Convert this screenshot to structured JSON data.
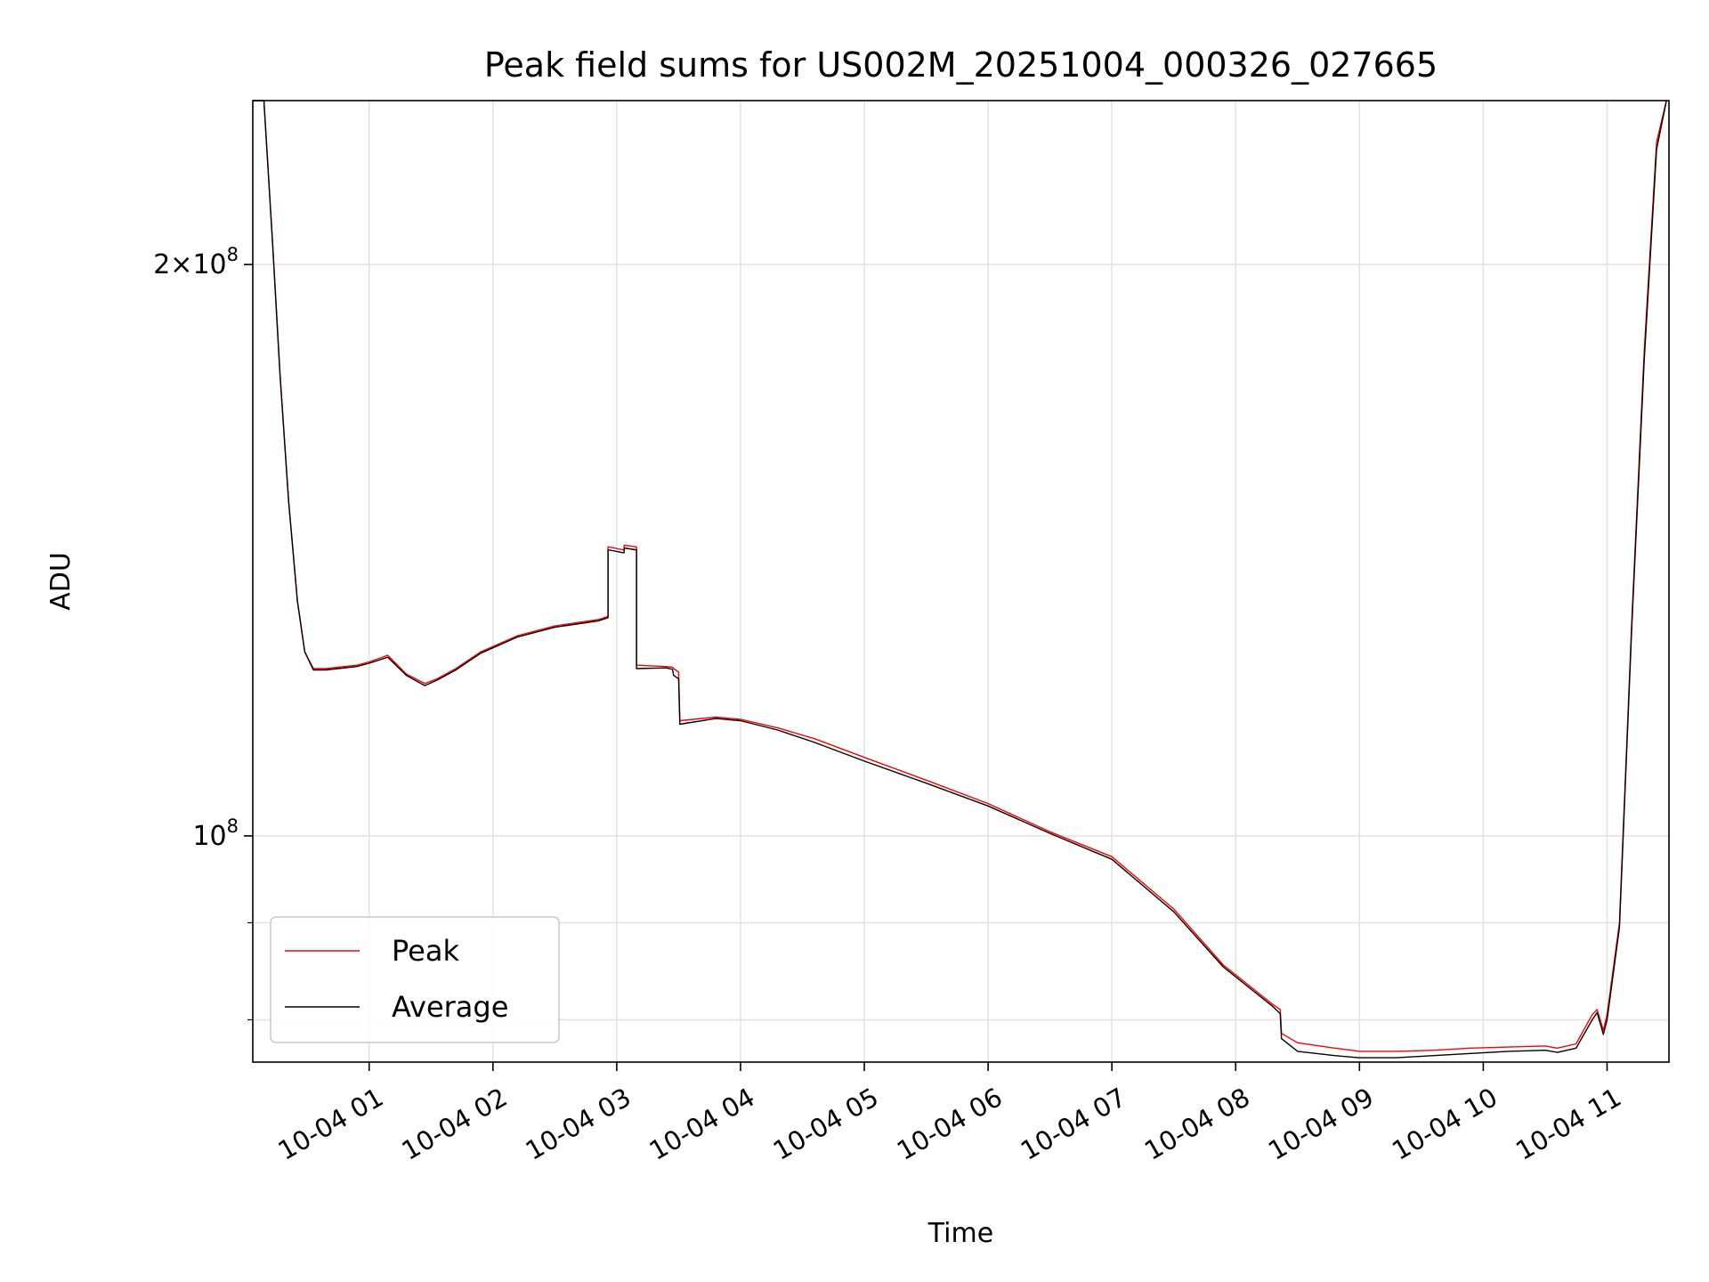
{
  "chart_data": {
    "type": "line",
    "title": "Peak field sums for US002M_20251004_000326_027665",
    "xlabel": "Time",
    "ylabel": "ADU",
    "yscale": "log",
    "grid": true,
    "legend_position": "lower-left",
    "x_unit": "hours since 2025-10-04 00:00",
    "xlim": [
      0.06,
      11.5
    ],
    "ylim": [
      76000000,
      244000000
    ],
    "x_ticks": [
      1,
      2,
      3,
      4,
      5,
      6,
      7,
      8,
      9,
      10,
      11
    ],
    "x_tick_labels": [
      "10-04 01",
      "10-04 02",
      "10-04 03",
      "10-04 04",
      "10-04 05",
      "10-04 06",
      "10-04 07",
      "10-04 08",
      "10-04 09",
      "10-04 10",
      "10-04 11"
    ],
    "y_major_ticks": [
      {
        "value": 100000000,
        "base": "10",
        "exp": "8",
        "mantissa": ""
      },
      {
        "value": 200000000,
        "base": "10",
        "exp": "8",
        "mantissa": "2×"
      }
    ],
    "y_minor_ticks": [
      80000000,
      90000000
    ],
    "series": [
      {
        "name": "Peak",
        "color": "#ff0000",
        "x": [
          0.06,
          0.15,
          0.22,
          0.28,
          0.35,
          0.42,
          0.48,
          0.55,
          0.65,
          0.9,
          1.0,
          1.15,
          1.3,
          1.45,
          1.55,
          1.7,
          1.9,
          2.2,
          2.5,
          2.85,
          2.93,
          2.93,
          3.05,
          3.06,
          3.06,
          3.15,
          3.16,
          3.16,
          3.4,
          3.45,
          3.46,
          3.5,
          3.51,
          3.8,
          4.0,
          4.3,
          4.6,
          5.0,
          5.5,
          6.0,
          6.5,
          7.0,
          7.5,
          7.9,
          8.3,
          8.36,
          8.37,
          8.5,
          8.8,
          9.0,
          9.3,
          9.6,
          9.9,
          10.2,
          10.5,
          10.6,
          10.75,
          10.88,
          10.92,
          10.97,
          11.0,
          11.1,
          11.2,
          11.3,
          11.4,
          11.48
        ],
        "y": [
          244000000,
          244000000,
          205000000,
          175000000,
          150000000,
          133000000,
          125000000,
          122500000,
          122500000,
          123000000,
          123500000,
          124500000,
          121700000,
          120300000,
          121000000,
          122500000,
          125000000,
          127500000,
          129000000,
          130000000,
          130500000,
          142000000,
          141500000,
          141500000,
          142300000,
          142000000,
          142000000,
          123000000,
          122800000,
          122700000,
          122500000,
          122000000,
          115000000,
          115500000,
          115200000,
          114000000,
          112500000,
          110000000,
          107000000,
          104000000,
          100500000,
          97500000,
          91500000,
          85500000,
          81500000,
          81000000,
          78700000,
          77800000,
          77300000,
          77000000,
          77000000,
          77100000,
          77300000,
          77400000,
          77500000,
          77300000,
          77700000,
          80500000,
          81000000,
          79000000,
          80500000,
          90000000,
          130000000,
          180000000,
          232000000,
          244000000
        ]
      },
      {
        "name": "Average",
        "color": "#000000",
        "x": [
          0.06,
          0.15,
          0.22,
          0.28,
          0.35,
          0.42,
          0.48,
          0.55,
          0.65,
          0.9,
          1.0,
          1.15,
          1.3,
          1.45,
          1.55,
          1.7,
          1.9,
          2.2,
          2.5,
          2.85,
          2.93,
          2.93,
          3.05,
          3.06,
          3.06,
          3.15,
          3.16,
          3.16,
          3.4,
          3.45,
          3.46,
          3.5,
          3.51,
          3.8,
          4.0,
          4.3,
          4.6,
          5.0,
          5.5,
          6.0,
          6.5,
          7.0,
          7.5,
          7.9,
          8.3,
          8.36,
          8.37,
          8.5,
          8.8,
          9.0,
          9.3,
          9.6,
          9.9,
          10.2,
          10.5,
          10.6,
          10.75,
          10.88,
          10.92,
          10.97,
          11.0,
          11.1,
          11.2,
          11.3,
          11.4,
          11.48
        ],
        "y": [
          244000000,
          244000000,
          205000000,
          175000000,
          150000000,
          133000000,
          125000000,
          122300000,
          122300000,
          122800000,
          123300000,
          124200000,
          121500000,
          120000000,
          120800000,
          122300000,
          124800000,
          127300000,
          128800000,
          129800000,
          130300000,
          141500000,
          141000000,
          141000000,
          141800000,
          141500000,
          141500000,
          122500000,
          122600000,
          122400000,
          121500000,
          121000000,
          114500000,
          115300000,
          115000000,
          113700000,
          112000000,
          109500000,
          106600000,
          103700000,
          100300000,
          97200000,
          91200000,
          85300000,
          81300000,
          80600000,
          78200000,
          77000000,
          76600000,
          76400000,
          76400000,
          76600000,
          76800000,
          77000000,
          77100000,
          76900000,
          77300000,
          80000000,
          80700000,
          78600000,
          80000000,
          89500000,
          129000000,
          178000000,
          230000000,
          244000000
        ]
      }
    ]
  }
}
